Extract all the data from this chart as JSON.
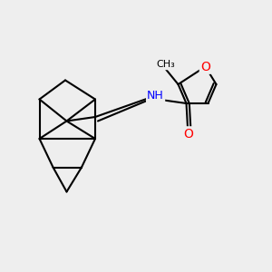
{
  "bg_color": "#eeeeee",
  "bond_color": "#000000",
  "bond_width": 1.5,
  "atom_colors": {
    "O": "#ff0000",
    "N": "#0000ff",
    "C": "#000000"
  },
  "font_size_atom": 9,
  "font_size_label": 7
}
